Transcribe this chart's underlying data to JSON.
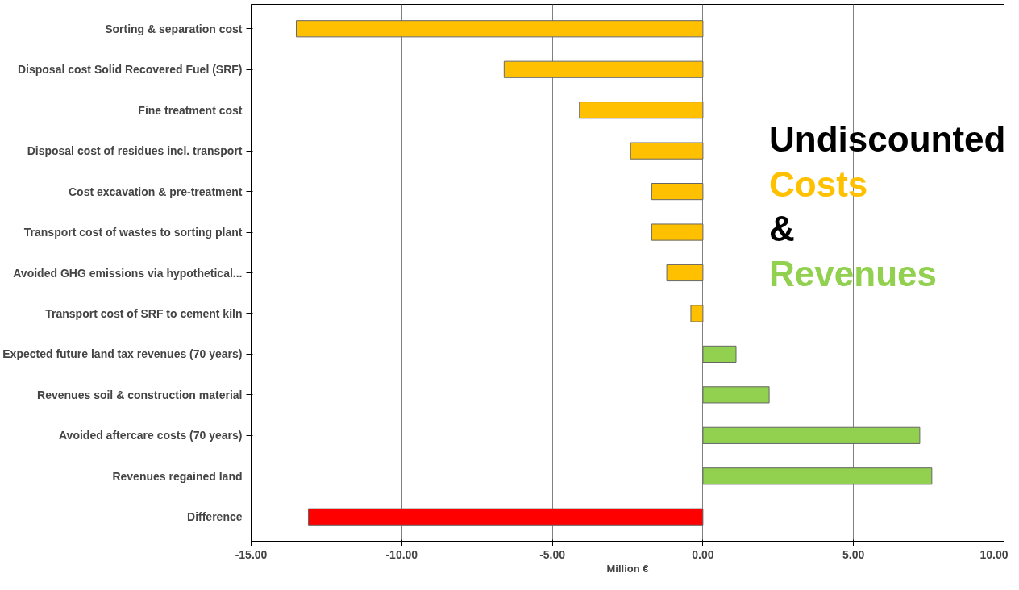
{
  "chart_data": {
    "type": "bar",
    "orientation": "horizontal",
    "categories": [
      "Sorting & separation cost",
      "Disposal cost Solid Recovered Fuel (SRF)",
      "Fine treatment cost",
      "Disposal cost of residues incl. transport",
      "Cost excavation & pre-treatment",
      "Transport cost of wastes to sorting plant",
      "Avoided GHG emissions via hypothetical...",
      "Transport cost of SRF to cement kiln",
      "Expected future land tax revenues (70 years)",
      "Revenues soil & construction material",
      "Avoided aftercare costs (70 years)",
      "Revenues regained land",
      "Difference"
    ],
    "values": [
      -13.5,
      -6.6,
      -4.1,
      -2.4,
      -1.7,
      -1.7,
      -1.2,
      -0.4,
      1.1,
      2.2,
      7.2,
      7.6,
      -13.1
    ],
    "colors": [
      "#ffc000",
      "#ffc000",
      "#ffc000",
      "#ffc000",
      "#ffc000",
      "#ffc000",
      "#ffc000",
      "#ffc000",
      "#92d050",
      "#92d050",
      "#92d050",
      "#92d050",
      "#ff0000"
    ],
    "xlim": [
      -15,
      10
    ],
    "xticks": [
      {
        "value": -15,
        "label": "-15.00"
      },
      {
        "value": -10,
        "label": "-10.00"
      },
      {
        "value": -5,
        "label": "-5.00"
      },
      {
        "value": 0,
        "label": "0.00"
      },
      {
        "value": 5,
        "label": "5.00"
      },
      {
        "value": 10,
        "label": "10.00"
      }
    ],
    "xlabel": "Million €",
    "grid": "x",
    "annotations": [
      "Undiscounted",
      "Costs",
      "&",
      "Revenues"
    ]
  }
}
